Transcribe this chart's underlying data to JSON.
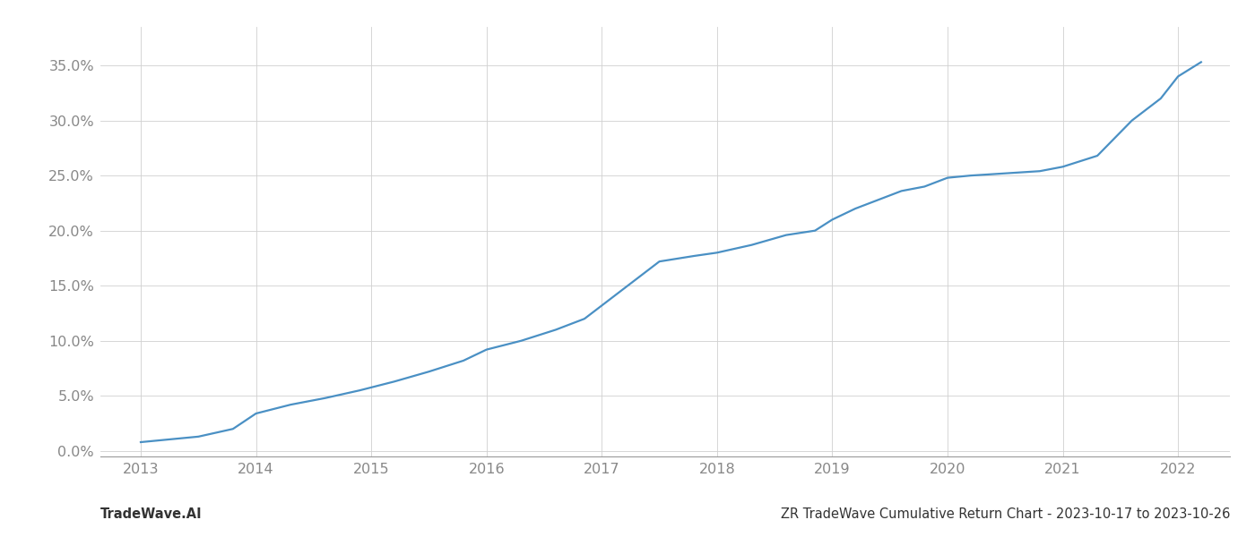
{
  "x_years": [
    2013.0,
    2013.2,
    2013.5,
    2013.8,
    2014.0,
    2014.3,
    2014.6,
    2014.9,
    2015.2,
    2015.5,
    2015.8,
    2016.0,
    2016.3,
    2016.6,
    2016.85,
    2017.0,
    2017.2,
    2017.5,
    2017.8,
    2018.0,
    2018.3,
    2018.6,
    2018.85,
    2019.0,
    2019.2,
    2019.4,
    2019.6,
    2019.8,
    2020.0,
    2020.2,
    2020.5,
    2020.8,
    2021.0,
    2021.3,
    2021.6,
    2021.85,
    2022.0,
    2022.2
  ],
  "y_values": [
    0.008,
    0.01,
    0.013,
    0.02,
    0.034,
    0.042,
    0.048,
    0.055,
    0.063,
    0.072,
    0.082,
    0.092,
    0.1,
    0.11,
    0.12,
    0.132,
    0.148,
    0.172,
    0.177,
    0.18,
    0.187,
    0.196,
    0.2,
    0.21,
    0.22,
    0.228,
    0.236,
    0.24,
    0.248,
    0.25,
    0.252,
    0.254,
    0.258,
    0.268,
    0.3,
    0.32,
    0.34,
    0.353
  ],
  "line_color": "#4a90c4",
  "background_color": "#ffffff",
  "grid_color": "#d0d0d0",
  "xlabel_color": "#888888",
  "ylabel_color": "#888888",
  "footer_left": "TradeWave.AI",
  "footer_right": "ZR TradeWave Cumulative Return Chart - 2023-10-17 to 2023-10-26",
  "footer_color": "#333333",
  "footer_fontsize": 10.5,
  "x_tick_labels": [
    "2013",
    "2014",
    "2015",
    "2016",
    "2017",
    "2018",
    "2019",
    "2020",
    "2021",
    "2022"
  ],
  "x_tick_positions": [
    2013,
    2014,
    2015,
    2016,
    2017,
    2018,
    2019,
    2020,
    2021,
    2022
  ],
  "y_tick_labels": [
    "0.0%",
    "5.0%",
    "10.0%",
    "15.0%",
    "20.0%",
    "25.0%",
    "30.0%",
    "35.0%"
  ],
  "y_tick_values": [
    0.0,
    0.05,
    0.1,
    0.15,
    0.2,
    0.25,
    0.3,
    0.35
  ],
  "xlim": [
    2012.65,
    2022.45
  ],
  "ylim": [
    -0.005,
    0.385
  ],
  "tick_fontsize": 11.5,
  "line_width": 1.6
}
